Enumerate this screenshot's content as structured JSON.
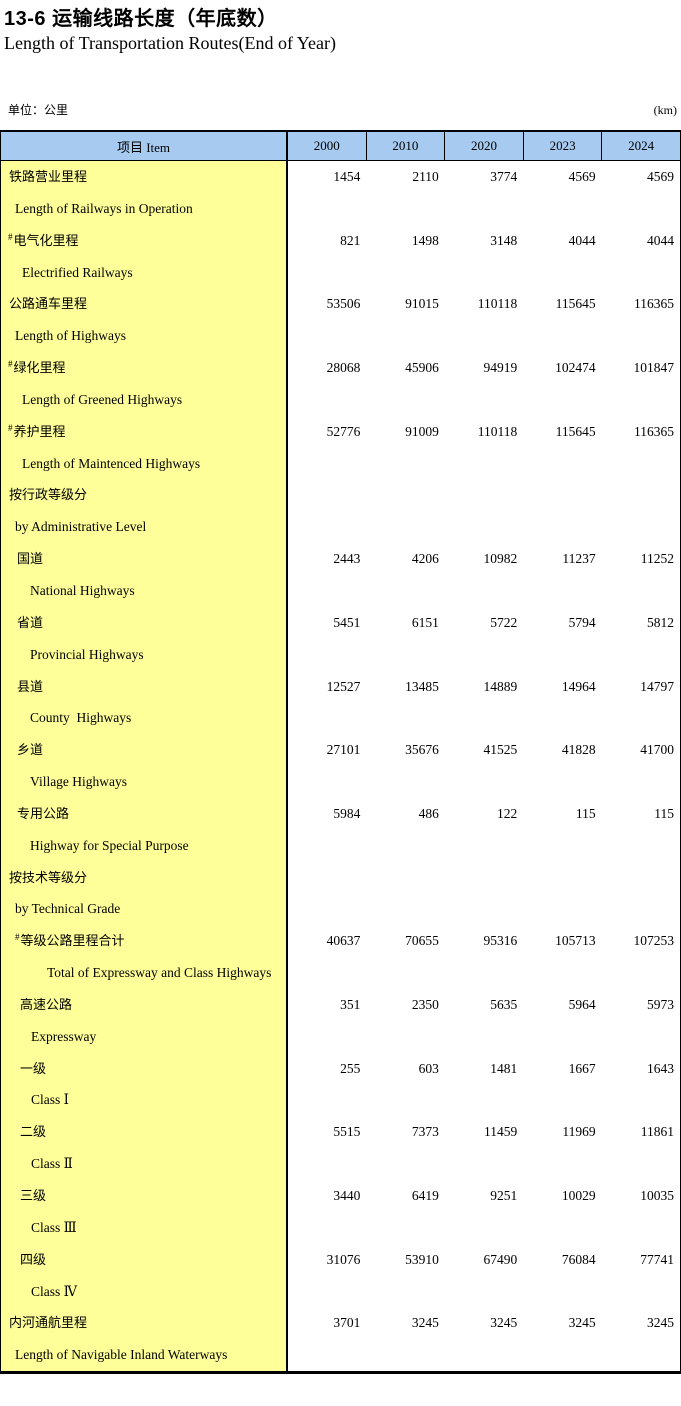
{
  "page": {
    "title": "13-6 运输线路长度（年底数）",
    "subtitle": "Length of Transportation Routes(End of Year)",
    "unit_left": "单位：公里",
    "unit_right": "(km)"
  },
  "colors": {
    "header_bg": "#A6CAF0",
    "label_bg": "#FFFF99",
    "border": "#000000"
  },
  "chart_data": {
    "type": "table",
    "columns": [
      "项目 Item",
      "2000",
      "2010",
      "2020",
      "2023",
      "2024"
    ],
    "rows": [
      {
        "cn": "铁路营业里程",
        "en": "Length of Railways in Operation",
        "marker": "",
        "cn_indent": 8,
        "en_indent": 14,
        "values": [
          "1454",
          "2110",
          "3774",
          "4569",
          "4569"
        ]
      },
      {
        "cn": "电气化里程",
        "en": "Electrified Railways",
        "marker": "#",
        "cn_indent": 12,
        "en_indent": 21,
        "values": [
          "821",
          "1498",
          "3148",
          "4044",
          "4044"
        ]
      },
      {
        "cn": "公路通车里程",
        "en": "Length of Highways",
        "marker": "",
        "cn_indent": 8,
        "en_indent": 14,
        "values": [
          "53506",
          "91015",
          "110118",
          "115645",
          "116365"
        ]
      },
      {
        "cn": "绿化里程",
        "en": "Length of Greened Highways",
        "marker": "#",
        "cn_indent": 12,
        "en_indent": 21,
        "values": [
          "28068",
          "45906",
          "94919",
          "102474",
          "101847"
        ]
      },
      {
        "cn": "养护里程",
        "en": "Length of Maintenced Highways",
        "marker": "#",
        "cn_indent": 12,
        "en_indent": 21,
        "values": [
          "52776",
          "91009",
          "110118",
          "115645",
          "116365"
        ]
      },
      {
        "cn": "按行政等级分",
        "en": "by Administrative Level",
        "marker": "",
        "cn_indent": 8,
        "en_indent": 14,
        "values": [
          "",
          "",
          "",
          "",
          ""
        ]
      },
      {
        "cn": "国道",
        "en": "National Highways",
        "marker": "",
        "cn_indent": 16,
        "en_indent": 29,
        "values": [
          "2443",
          "4206",
          "10982",
          "11237",
          "11252"
        ]
      },
      {
        "cn": "省道",
        "en": "Provincial Highways",
        "marker": "",
        "cn_indent": 16,
        "en_indent": 29,
        "values": [
          "5451",
          "6151",
          "5722",
          "5794",
          "5812"
        ]
      },
      {
        "cn": "县道",
        "en": "County  Highways",
        "marker": "",
        "cn_indent": 16,
        "en_indent": 29,
        "values": [
          "12527",
          "13485",
          "14889",
          "14964",
          "14797"
        ]
      },
      {
        "cn": "乡道",
        "en": "Village Highways",
        "marker": "",
        "cn_indent": 16,
        "en_indent": 29,
        "values": [
          "27101",
          "35676",
          "41525",
          "41828",
          "41700"
        ]
      },
      {
        "cn": "专用公路",
        "en": "Highway for Special Purpose",
        "marker": "",
        "cn_indent": 16,
        "en_indent": 29,
        "values": [
          "5984",
          "486",
          "122",
          "115",
          "115"
        ]
      },
      {
        "cn": "按技术等级分",
        "en": "by Technical Grade",
        "marker": "",
        "cn_indent": 8,
        "en_indent": 14,
        "values": [
          "",
          "",
          "",
          "",
          ""
        ]
      },
      {
        "cn": "等级公路里程合计",
        "en": "Total of Expressway and Class Highways",
        "marker": "#",
        "cn_indent": 19,
        "en_indent": 46,
        "values": [
          "40637",
          "70655",
          "95316",
          "105713",
          "107253"
        ]
      },
      {
        "cn": "高速公路",
        "en": "Expressway",
        "marker": "",
        "cn_indent": 19,
        "en_indent": 30,
        "values": [
          "351",
          "2350",
          "5635",
          "5964",
          "5973"
        ]
      },
      {
        "cn": "一级",
        "en": "Class Ⅰ",
        "marker": "",
        "cn_indent": 19,
        "en_indent": 30,
        "values": [
          "255",
          "603",
          "1481",
          "1667",
          "1643"
        ]
      },
      {
        "cn": "二级",
        "en": "Class Ⅱ",
        "marker": "",
        "cn_indent": 19,
        "en_indent": 30,
        "values": [
          "5515",
          "7373",
          "11459",
          "11969",
          "11861"
        ]
      },
      {
        "cn": "三级",
        "en": "Class Ⅲ",
        "marker": "",
        "cn_indent": 19,
        "en_indent": 30,
        "values": [
          "3440",
          "6419",
          "9251",
          "10029",
          "10035"
        ]
      },
      {
        "cn": "四级",
        "en": "Class Ⅳ",
        "marker": "",
        "cn_indent": 19,
        "en_indent": 30,
        "values": [
          "31076",
          "53910",
          "67490",
          "76084",
          "77741"
        ]
      },
      {
        "cn": "内河通航里程",
        "en": "Length of Navigable Inland Waterways",
        "marker": "",
        "cn_indent": 8,
        "en_indent": 14,
        "values": [
          "3701",
          "3245",
          "3245",
          "3245",
          "3245"
        ]
      }
    ]
  }
}
